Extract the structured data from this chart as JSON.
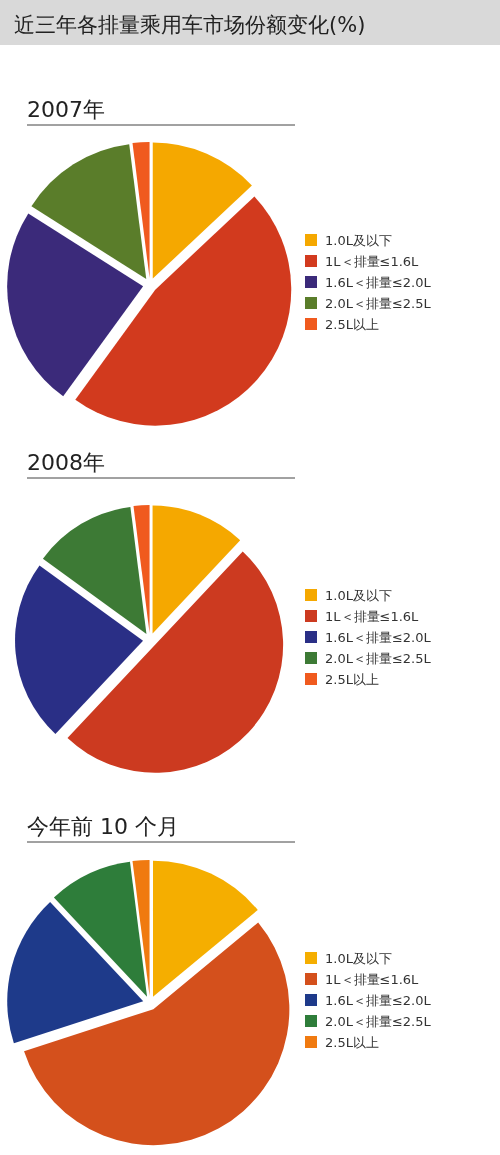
{
  "chart_data": [
    {
      "type": "pie",
      "title": "近三年各排量乘用车市场份额变化(%)",
      "subtitle": "2007年",
      "legend": "right",
      "categories": [
        "1.0L及以下",
        "1L＜排量≤1.6L",
        "1.6L＜排量≤2.0L",
        "2.0L＜排量≤2.5L",
        "2.5L以上"
      ],
      "values": [
        13,
        47,
        24,
        14,
        2
      ],
      "colors": [
        "#f5a800",
        "#d23a1e",
        "#3b2a7a",
        "#5a7d2a",
        "#f05a1e"
      ]
    },
    {
      "type": "pie",
      "subtitle": "2008年",
      "legend": "right",
      "categories": [
        "1.0L及以下",
        "1L＜排量≤1.6L",
        "1.6L＜排量≤2.0L",
        "2.0L＜排量≤2.5L",
        "2.5L以上"
      ],
      "values": [
        12,
        50,
        23,
        13,
        2
      ],
      "colors": [
        "#f5a800",
        "#cc3a20",
        "#2a2f86",
        "#3d7a35",
        "#f05a1e"
      ]
    },
    {
      "type": "pie",
      "subtitle": "今年前 10 个月",
      "legend": "right",
      "categories": [
        "1.0L及以下",
        "1L＜排量≤1.6L",
        "1.6L＜排量≤2.0L",
        "2.0L＜排量≤2.5L",
        "2.5L以上"
      ],
      "values": [
        14,
        56,
        18,
        10,
        2
      ],
      "colors": [
        "#f5ae00",
        "#d4501c",
        "#1e3a8a",
        "#2e7d3a",
        "#f07a10"
      ]
    }
  ]
}
